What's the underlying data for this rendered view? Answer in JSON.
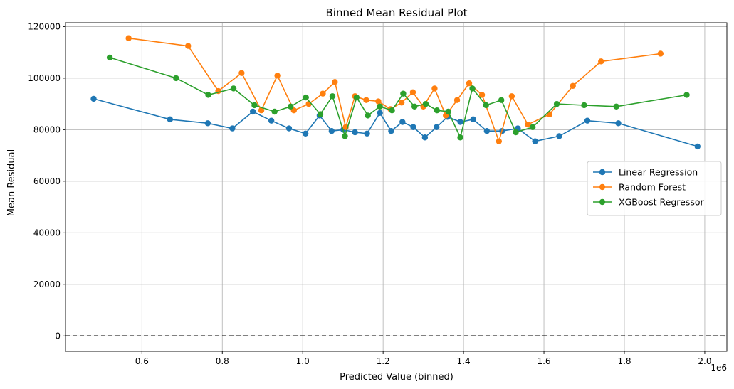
{
  "chart_data": {
    "type": "line",
    "title": "Binned Mean Residual Plot",
    "xlabel": "Predicted Value (binned)",
    "ylabel": "Mean Residual",
    "x_offset_label": "1e6",
    "xlim": [
      0.41,
      2.055
    ],
    "ylim": [
      -6000,
      121500
    ],
    "x_ticks": [
      0.6,
      0.8,
      1.0,
      1.2,
      1.4,
      1.6,
      1.8,
      2.0
    ],
    "x_tick_labels": [
      "0.6",
      "0.8",
      "1.0",
      "1.2",
      "1.4",
      "1.6",
      "1.8",
      "2.0"
    ],
    "y_ticks": [
      0,
      20000,
      40000,
      60000,
      80000,
      100000,
      120000
    ],
    "y_tick_labels": [
      "0",
      "20000",
      "40000",
      "60000",
      "80000",
      "100000",
      "120000"
    ],
    "grid": true,
    "legend_position": "center-right",
    "reference_line": {
      "y": 0,
      "style": "dashed",
      "color": "#000000"
    },
    "series": [
      {
        "name": "Linear Regression",
        "color": "#1f77b4",
        "x": [
          0.48,
          0.67,
          0.764,
          0.825,
          0.876,
          0.922,
          0.966,
          1.007,
          1.042,
          1.072,
          1.101,
          1.13,
          1.16,
          1.192,
          1.22,
          1.248,
          1.275,
          1.304,
          1.333,
          1.36,
          1.392,
          1.424,
          1.458,
          1.496,
          1.535,
          1.578,
          1.638,
          1.708,
          1.785,
          1.982
        ],
        "y": [
          92000,
          84000,
          82500,
          80500,
          87000,
          83500,
          80500,
          78500,
          85500,
          79500,
          80000,
          79000,
          78500,
          86500,
          79500,
          83000,
          81000,
          77000,
          81000,
          85000,
          83000,
          84000,
          79500,
          79500,
          80500,
          75500,
          77500,
          83500,
          82500,
          73500
        ]
      },
      {
        "name": "Random Forest",
        "color": "#ff7f0e",
        "x": [
          0.567,
          0.715,
          0.79,
          0.848,
          0.897,
          0.937,
          0.978,
          1.015,
          1.05,
          1.08,
          1.107,
          1.13,
          1.158,
          1.188,
          1.218,
          1.246,
          1.274,
          1.3,
          1.328,
          1.356,
          1.384,
          1.414,
          1.446,
          1.488,
          1.52,
          1.56,
          1.614,
          1.672,
          1.742,
          1.89
        ],
        "y": [
          115500,
          112500,
          95000,
          102000,
          87500,
          101000,
          87500,
          90000,
          94000,
          98500,
          81000,
          93000,
          91500,
          91000,
          88000,
          90500,
          94500,
          89000,
          96000,
          85500,
          91500,
          98000,
          93500,
          75500,
          93000,
          82000,
          86000,
          97000,
          106500,
          109500
        ]
      },
      {
        "name": "XGBoost Regressor",
        "color": "#2ca02c",
        "x": [
          0.52,
          0.685,
          0.765,
          0.828,
          0.88,
          0.93,
          0.97,
          1.008,
          1.044,
          1.074,
          1.105,
          1.134,
          1.162,
          1.192,
          1.222,
          1.25,
          1.278,
          1.306,
          1.334,
          1.362,
          1.392,
          1.422,
          1.456,
          1.494,
          1.53,
          1.572,
          1.632,
          1.7,
          1.78,
          1.955
        ],
        "y": [
          108000,
          100000,
          93500,
          96000,
          89500,
          87000,
          89000,
          92500,
          86000,
          93000,
          77500,
          92500,
          85500,
          89000,
          87500,
          94000,
          89000,
          90000,
          87500,
          87000,
          77000,
          96000,
          89500,
          91500,
          79000,
          81000,
          90000,
          89500,
          89000,
          93500
        ]
      }
    ]
  }
}
